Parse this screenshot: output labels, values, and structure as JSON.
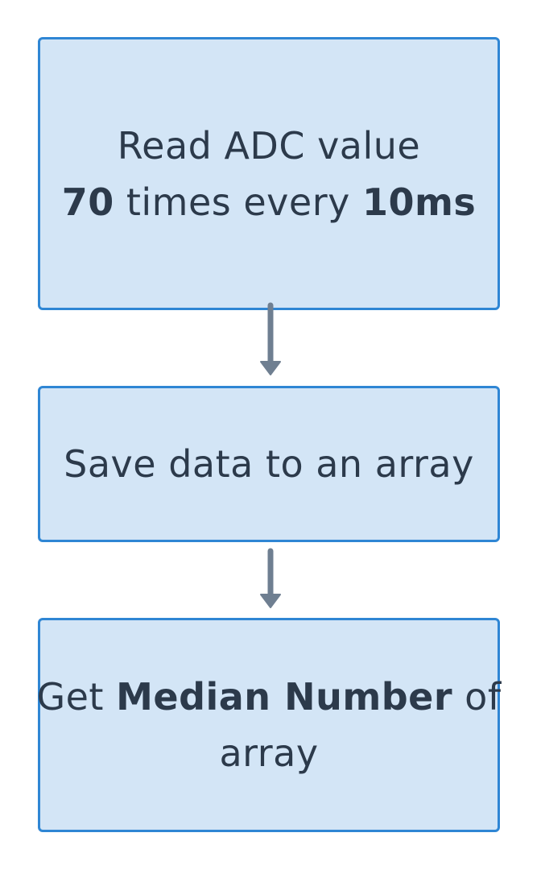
{
  "nodes": [
    {
      "id": "read-adc",
      "line1": "Read ADC value",
      "line2_bold_a": "70",
      "line2_mid": " times every ",
      "line2_bold_b": "10ms"
    },
    {
      "id": "save-array",
      "text": "Save data to an array"
    },
    {
      "id": "get-median",
      "pre": "Get ",
      "bold": "Median Number",
      "post": " of",
      "line2": "array"
    }
  ],
  "colors": {
    "box_fill": "#d3e5f6",
    "box_border": "#2f86d4",
    "arrow": "#6f7f91",
    "text": "#2c3a4b"
  }
}
